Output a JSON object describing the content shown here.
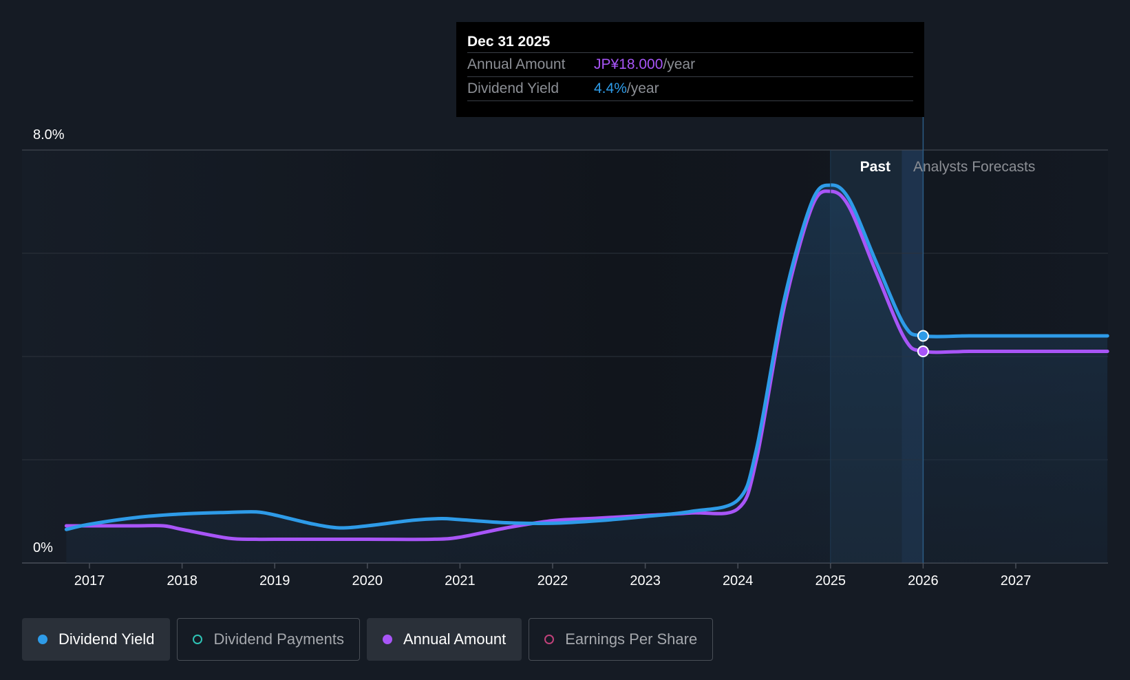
{
  "colors": {
    "yield": "#2e9be8",
    "annual": "#a855f7",
    "payments": "#2ec4b6",
    "eps": "#c0417a",
    "background": "#151b24",
    "grid": "#323842"
  },
  "tooltip": {
    "date": "Dec 31 2025",
    "annual_label": "Annual Amount",
    "annual_value": "JP¥18.000",
    "annual_unit": "/year",
    "yield_label": "Dividend Yield",
    "yield_value": "4.4%",
    "yield_unit": "/year"
  },
  "regions": {
    "past_label": "Past",
    "forecast_label": "Analysts Forecasts"
  },
  "legend": [
    {
      "label": "Dividend Yield",
      "color": "#2e9be8",
      "filled": true,
      "active": true
    },
    {
      "label": "Dividend Payments",
      "color": "#2ec4b6",
      "filled": false,
      "active": false
    },
    {
      "label": "Annual Amount",
      "color": "#a855f7",
      "filled": true,
      "active": true
    },
    {
      "label": "Earnings Per Share",
      "color": "#c0417a",
      "filled": false,
      "active": false
    }
  ],
  "chart_data": {
    "type": "line",
    "title": "",
    "xlabel": "",
    "ylabel": "",
    "ylim": [
      0,
      8
    ],
    "y_ticks": [
      0,
      2,
      4,
      6,
      8
    ],
    "y_tick_labels": {
      "0": "0%",
      "8": "8.0%"
    },
    "xlim": [
      2016.75,
      2027.99
    ],
    "x_ticks": [
      2017,
      2018,
      2019,
      2020,
      2021,
      2022,
      2023,
      2024,
      2025,
      2026,
      2027
    ],
    "x_tick_labels": [
      "2017",
      "2018",
      "2019",
      "2020",
      "2021",
      "2022",
      "2023",
      "2024",
      "2025",
      "2026",
      "2027"
    ],
    "past_region": [
      2025.0,
      2025.77
    ],
    "forecast_start": 2026.0,
    "series": [
      {
        "name": "Dividend Yield",
        "color": "#2e9be8",
        "x": [
          2016.75,
          2017.0,
          2017.5,
          2018.0,
          2018.5,
          2018.8,
          2019.0,
          2019.4,
          2019.7,
          2020.0,
          2020.5,
          2020.8,
          2021.0,
          2021.5,
          2022.0,
          2022.5,
          2023.0,
          2023.5,
          2024.0,
          2024.2,
          2024.5,
          2024.8,
          2025.0,
          2025.2,
          2025.5,
          2025.8,
          2026.0,
          2026.5,
          2027.0,
          2027.99
        ],
        "values": [
          0.65,
          0.75,
          0.88,
          0.95,
          0.98,
          0.99,
          0.93,
          0.76,
          0.68,
          0.72,
          0.83,
          0.86,
          0.84,
          0.78,
          0.77,
          0.82,
          0.9,
          1.0,
          1.22,
          2.2,
          5.1,
          7.0,
          7.32,
          7.05,
          5.8,
          4.6,
          4.4,
          4.4,
          4.4,
          4.4
        ]
      },
      {
        "name": "Annual Amount",
        "color": "#a855f7",
        "x": [
          2016.75,
          2017.0,
          2017.5,
          2017.8,
          2018.0,
          2018.5,
          2018.8,
          2019.0,
          2020.0,
          2020.7,
          2021.0,
          2021.5,
          2022.0,
          2022.5,
          2023.0,
          2023.5,
          2024.0,
          2024.2,
          2024.5,
          2024.8,
          2025.0,
          2025.2,
          2025.5,
          2025.8,
          2026.0,
          2026.5,
          2027.0,
          2027.99
        ],
        "values": [
          0.72,
          0.72,
          0.72,
          0.72,
          0.65,
          0.48,
          0.46,
          0.46,
          0.46,
          0.46,
          0.5,
          0.68,
          0.82,
          0.87,
          0.92,
          0.97,
          1.05,
          2.0,
          4.95,
          6.9,
          7.2,
          6.9,
          5.6,
          4.35,
          4.1,
          4.1,
          4.1,
          4.1
        ]
      }
    ],
    "highlight": {
      "x": 2026.0,
      "yield": 4.4,
      "annual": 4.1
    }
  }
}
